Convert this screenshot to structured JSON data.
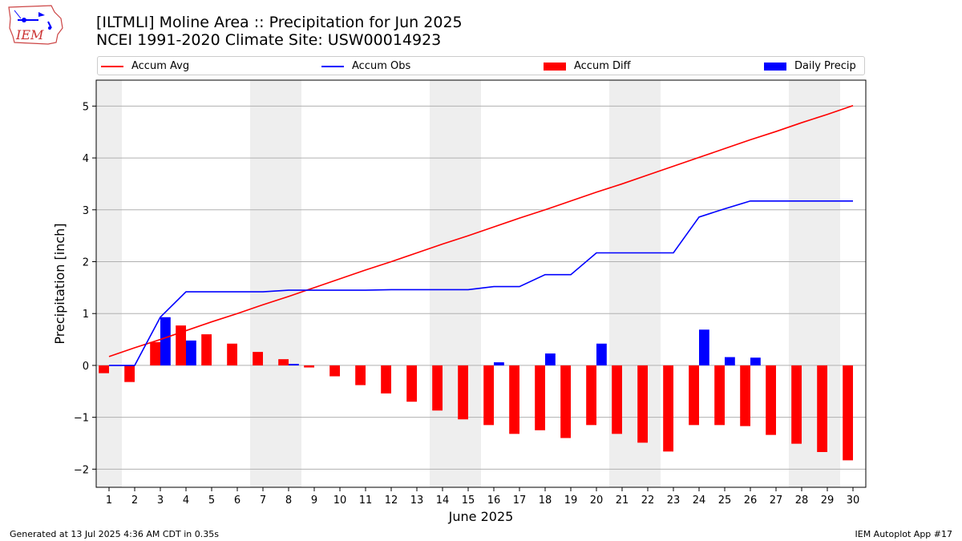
{
  "header": {
    "title_line1": "[ILTMLI] Moline Area :: Precipitation for Jun 2025",
    "title_line2": "NCEI 1991-2020 Climate Site: USW00014923",
    "logo_text": "IEM"
  },
  "footer": {
    "left": "Generated at 13 Jul 2025 4:36 AM CDT in 0.35s",
    "right": "IEM Autoplot App #17"
  },
  "colors": {
    "accum_avg": "#ff0000",
    "accum_obs": "#0000ff",
    "accum_diff": "#ff0000",
    "daily_precip": "#0000ff",
    "weekend_shade": "#eeeeee",
    "grid": "#b0b0b0"
  },
  "chart_data": {
    "type": "bar",
    "xlabel": "June 2025",
    "ylabel": "Precipitation [inch]",
    "ylim": [
      -2.35,
      5.5
    ],
    "xlim": [
      0.5,
      30.5
    ],
    "yticks": [
      -2,
      -1,
      0,
      1,
      2,
      3,
      4,
      5
    ],
    "ytick_labels": [
      "−2",
      "−1",
      "0",
      "1",
      "2",
      "3",
      "4",
      "5"
    ],
    "grid": true,
    "legend_position": "top",
    "days": [
      1,
      2,
      3,
      4,
      5,
      6,
      7,
      8,
      9,
      10,
      11,
      12,
      13,
      14,
      15,
      16,
      17,
      18,
      19,
      20,
      21,
      22,
      23,
      24,
      25,
      26,
      27,
      28,
      29,
      30
    ],
    "weekend_ranges": [
      [
        0.5,
        1.5
      ],
      [
        6.5,
        8.5
      ],
      [
        13.5,
        15.5
      ],
      [
        20.5,
        22.5
      ],
      [
        27.5,
        29.5
      ]
    ],
    "series": [
      {
        "name": "Accum Avg",
        "kind": "line",
        "values": [
          0.17,
          0.34,
          0.5,
          0.67,
          0.84,
          1.0,
          1.17,
          1.33,
          1.5,
          1.67,
          1.84,
          2.0,
          2.17,
          2.34,
          2.5,
          2.67,
          2.84,
          3.0,
          3.17,
          3.34,
          3.5,
          3.67,
          3.84,
          4.01,
          4.18,
          4.35,
          4.51,
          4.68,
          4.84,
          5.01
        ]
      },
      {
        "name": "Accum Obs",
        "kind": "line",
        "values": [
          0.0,
          0.0,
          0.93,
          1.42,
          1.42,
          1.42,
          1.42,
          1.45,
          1.45,
          1.45,
          1.45,
          1.46,
          1.46,
          1.46,
          1.46,
          1.52,
          1.52,
          1.75,
          1.75,
          2.17,
          2.17,
          2.17,
          2.17,
          2.86,
          3.02,
          3.17,
          3.17,
          3.17,
          3.17,
          3.17
        ]
      },
      {
        "name": "Accum Diff",
        "kind": "bar",
        "values": [
          -0.15,
          -0.32,
          0.45,
          0.77,
          0.6,
          0.42,
          0.26,
          0.12,
          -0.04,
          -0.21,
          -0.38,
          -0.54,
          -0.7,
          -0.87,
          -1.04,
          -1.15,
          -1.32,
          -1.25,
          -1.4,
          -1.15,
          -1.32,
          -1.49,
          -1.66,
          -1.15,
          -1.15,
          -1.17,
          -1.34,
          -1.51,
          -1.67,
          -1.83
        ]
      },
      {
        "name": "Daily Precip",
        "kind": "bar",
        "values": [
          0.0,
          0.0,
          0.93,
          0.48,
          0.0,
          0.0,
          0.0,
          0.03,
          0.0,
          0.0,
          0.0,
          0.0,
          0.0,
          0.0,
          0.0,
          0.06,
          0.0,
          0.23,
          0.0,
          0.42,
          0.0,
          0.0,
          0.0,
          0.69,
          0.16,
          0.15,
          0.0,
          0.0,
          0.0,
          0.0
        ]
      }
    ]
  }
}
